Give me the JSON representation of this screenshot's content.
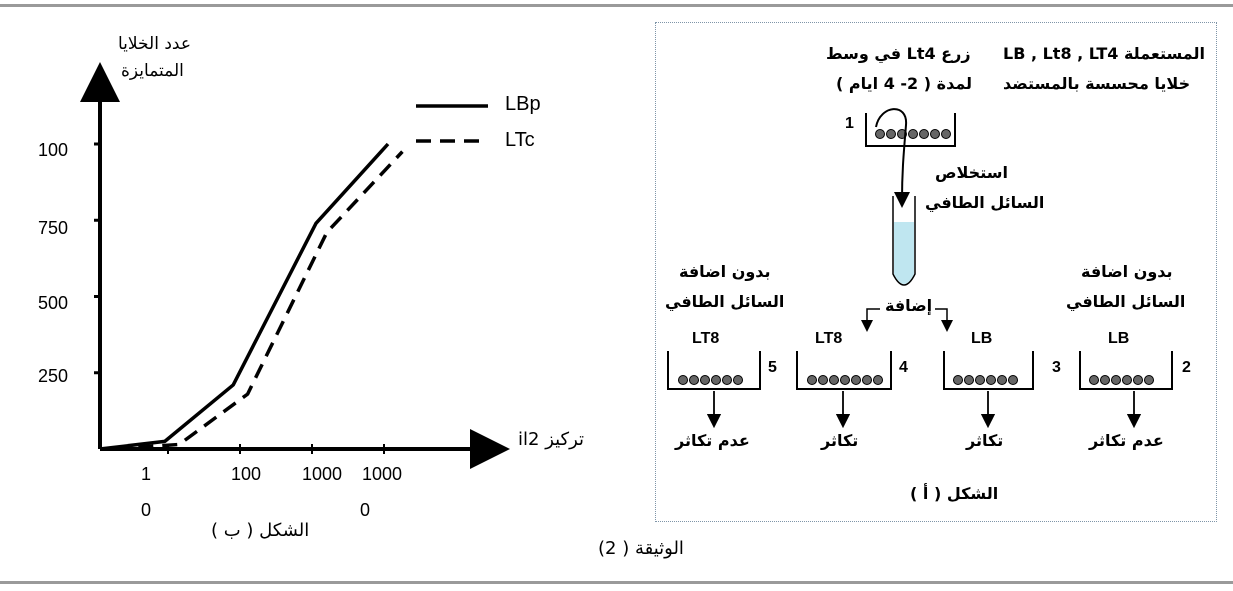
{
  "document_caption": "الوثيقة ( 2)",
  "figure_b": {
    "caption": "الشكل ( ب )",
    "y_label_line1": "عدد الخلايا",
    "y_label_line2": "المتمايزة",
    "x_label": "تركيز il2",
    "legend": [
      {
        "name": "LBp",
        "style": "solid"
      },
      {
        "name": "LTc",
        "style": "dashed"
      }
    ]
  },
  "chart_data": {
    "type": "line",
    "x_ticks": [
      {
        "line1": "1",
        "line2": "0"
      },
      {
        "line1": "100",
        "line2": ""
      },
      {
        "line1": "1000",
        "line2": ""
      },
      {
        "line1": "1000",
        "line2": "0"
      }
    ],
    "y_ticks": [
      "250",
      "500",
      "750",
      "100"
    ],
    "series": [
      {
        "name": "LBp",
        "style": "solid",
        "points": [
          [
            0,
            0
          ],
          [
            0.9,
            25
          ],
          [
            1.85,
            210
          ],
          [
            3.0,
            740
          ],
          [
            4.0,
            1000
          ]
        ]
      },
      {
        "name": "LTc",
        "style": "dashed",
        "points": [
          [
            0.2,
            0
          ],
          [
            1.1,
            15
          ],
          [
            2.05,
            180
          ],
          [
            3.15,
            710
          ],
          [
            4.2,
            975
          ]
        ]
      }
    ]
  },
  "figure_a": {
    "caption": "الشكل ( أ )",
    "header_line1": "LB , Lt8 , LT4 المستعملة",
    "header_line2": "خلايا محسسة بالمستضد",
    "culture_line1": "زرع Lt4 في وسط",
    "culture_line2": "لمدة ( 2- 4 ايام )",
    "extract_line1": "استخلاص",
    "extract_line2": "السائل الطافي",
    "addition": "إضافة",
    "without_left_line1": "بدون اضافة",
    "without_left_line2": "السائل الطافي",
    "without_right_line1": "بدون اضافة",
    "without_right_line2": "السائل الطافي",
    "dish1": {
      "number": "1"
    },
    "dishes": [
      {
        "number": "5",
        "label": "LT8",
        "result": "عدم تكاثر"
      },
      {
        "number": "4",
        "label": "LT8",
        "result": "تكاثر"
      },
      {
        "number": "3",
        "label": "LB",
        "result": "تكاثر"
      },
      {
        "number": "2",
        "label": "LB",
        "result": "عدم تكاثر"
      }
    ]
  }
}
